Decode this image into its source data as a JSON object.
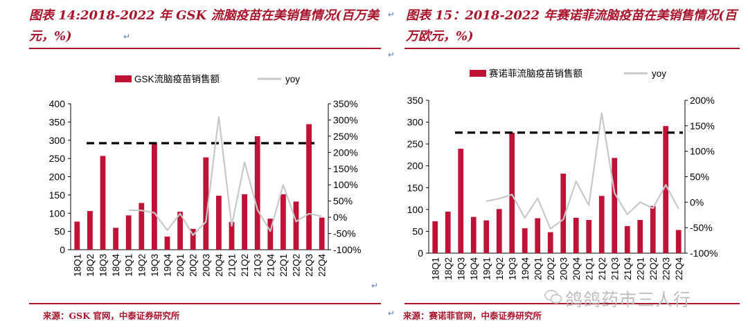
{
  "chart_data": [
    {
      "type": "bar",
      "title": "图表 14:2018-2022 年 GSK 流脑疫苗在美销售情况(百万美元，%)",
      "categories": [
        "18Q1",
        "18Q2",
        "18Q3",
        "18Q4",
        "19Q1",
        "19Q2",
        "19Q3",
        "19Q4",
        "20Q1",
        "20Q2",
        "20Q3",
        "20Q4",
        "21Q1",
        "21Q2",
        "21Q3",
        "21Q4",
        "22Q1",
        "22Q2",
        "22Q3",
        "22Q4"
      ],
      "series": [
        {
          "name": "GSK流脑疫苗销售额",
          "type": "bar",
          "axis": "left",
          "color": "#bf1237",
          "values": [
            77,
            106,
            257,
            60,
            94,
            128,
            294,
            36,
            104,
            57,
            253,
            148,
            76,
            152,
            311,
            85,
            152,
            132,
            344,
            88
          ]
        },
        {
          "name": "yoy",
          "type": "line",
          "axis": "right",
          "color": "#c8c8c8",
          "values": [
            null,
            null,
            null,
            null,
            0.22,
            0.21,
            0.14,
            -0.4,
            0.11,
            -0.55,
            -0.14,
            3.1,
            -0.27,
            1.7,
            0.23,
            -0.43,
            1.0,
            -0.13,
            0.11,
            0.03
          ]
        }
      ],
      "reference_line": {
        "axis": "left",
        "value": 292,
        "style": "dashed",
        "color": "#000000"
      },
      "y_left": {
        "ylim": [
          0,
          400
        ],
        "ticks": [
          0,
          50,
          100,
          150,
          200,
          250,
          300,
          350,
          400
        ]
      },
      "y_right": {
        "ylim": [
          -1.0,
          3.5
        ],
        "ticks": [
          "-100%",
          "-50%",
          "0%",
          "50%",
          "100%",
          "150%",
          "200%",
          "250%",
          "300%",
          "350%"
        ]
      },
      "legend": "top",
      "source": "来源：GSK 官网，中泰证券研究所"
    },
    {
      "type": "bar",
      "title": "图表 15：2018-2022 年赛诺菲流脑疫苗在美销售情况(百万欧元，%)",
      "categories": [
        "18Q1",
        "18Q2",
        "18Q3",
        "18Q4",
        "19Q1",
        "19Q2",
        "19Q3",
        "19Q4",
        "20Q1",
        "20Q2",
        "20Q3",
        "20Q4",
        "21Q1",
        "21Q2",
        "21Q3",
        "21Q4",
        "22Q1",
        "22Q2",
        "22Q3",
        "22Q4"
      ],
      "series": [
        {
          "name": "赛诺菲流脑疫苗销售额",
          "type": "bar",
          "axis": "left",
          "color": "#bf1237",
          "values": [
            73,
            95,
            239,
            83,
            75,
            101,
            276,
            57,
            80,
            48,
            182,
            81,
            76,
            131,
            218,
            62,
            76,
            108,
            291,
            53
          ]
        },
        {
          "name": "yoy",
          "type": "line",
          "axis": "right",
          "color": "#c8c8c8",
          "values": [
            null,
            null,
            null,
            null,
            0.02,
            0.07,
            0.15,
            -0.31,
            0.08,
            -0.52,
            -0.34,
            0.41,
            -0.06,
            1.75,
            0.18,
            -0.24,
            0.0,
            -0.12,
            0.34,
            -0.13
          ]
        }
      ],
      "reference_line": {
        "axis": "left",
        "value": 276,
        "style": "dashed",
        "color": "#000000"
      },
      "y_left": {
        "ylim": [
          0,
          350
        ],
        "ticks": [
          0,
          50,
          100,
          150,
          200,
          250,
          300,
          350
        ]
      },
      "y_right": {
        "ylim": [
          -1.0,
          2.0
        ],
        "ticks": [
          "-100%",
          "-50%",
          "0%",
          "50%",
          "100%",
          "150%",
          "200%"
        ]
      },
      "legend": "top",
      "source": "来源：赛诺菲官网，中泰证券研究所"
    }
  ],
  "watermark": "鸽鸽药市三人行"
}
